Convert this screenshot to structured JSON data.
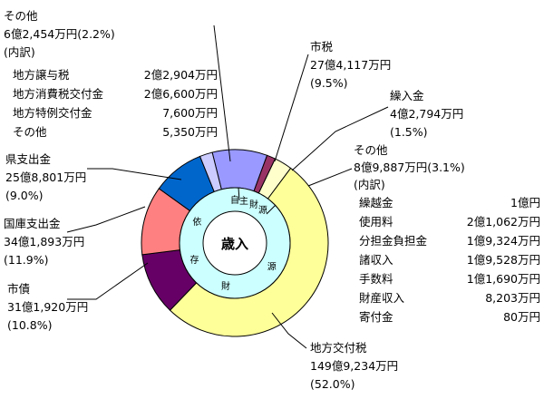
{
  "chart_data": {
    "type": "pie",
    "title": "歳入",
    "inner_ring": {
      "arcs": [
        {
          "label": "自主財源",
          "chars": [
            "自",
            "主",
            "財",
            "源"
          ]
        },
        {
          "label": "依存財源",
          "chars": [
            "依",
            "存",
            "財",
            "源"
          ]
        }
      ]
    },
    "slices": [
      {
        "name": "市税",
        "amount": "27億4,117万円",
        "pct": "(9.5%)",
        "value": 9.5,
        "color": "#9999ff"
      },
      {
        "name": "繰入金",
        "amount": "4億2,794万円",
        "pct": "(1.5%)",
        "value": 1.5,
        "color": "#993366"
      },
      {
        "name": "その他",
        "amount": "8億9,887万円",
        "pct": "(3.1%)",
        "value": 3.1,
        "color": "#ffffcc"
      },
      {
        "name": "地方交付税",
        "amount": "149億9,234万円",
        "pct": "(52.0%)",
        "value": 52.0,
        "color": "#ffff99"
      },
      {
        "name": "市債",
        "amount": "31億1,920万円",
        "pct": "(10.8%)",
        "value": 10.8,
        "color": "#660066"
      },
      {
        "name": "国庫支出金",
        "amount": "34億1,893万円",
        "pct": "(11.9%)",
        "value": 11.9,
        "color": "#ff8080"
      },
      {
        "name": "県支出金",
        "amount": "25億8,801万円",
        "pct": "(9.0%)",
        "value": 9.0,
        "color": "#0066cc"
      },
      {
        "name": "その他",
        "amount": "6億2,454万円",
        "pct": "(2.2%)",
        "value": 2.2,
        "color": "#ccccff"
      }
    ],
    "other_left": {
      "title": "その他",
      "line2": "6億2,454万円(2.2%)",
      "breakdown_label": "(内訳)",
      "items": [
        {
          "k": "地方譲与税",
          "v": "2億2,904万円"
        },
        {
          "k": "地方消費税交付金",
          "v": "2億6,600万円"
        },
        {
          "k": "地方特例交付金",
          "v": "7,600万円"
        },
        {
          "k": "その他",
          "v": "5,350万円"
        }
      ]
    },
    "other_right": {
      "title": "その他",
      "line2": "8億9,887万円(3.1%)",
      "breakdown_label": "(内訳)",
      "items": [
        {
          "k": "繰越金",
          "v": "1億円"
        },
        {
          "k": "使用料",
          "v": "2億1,062万円"
        },
        {
          "k": "分担金負担金",
          "v": "1億9,324万円"
        },
        {
          "k": "諸収入",
          "v": "1億9,528万円"
        },
        {
          "k": "手数料",
          "v": "1億1,690万円"
        },
        {
          "k": "財産収入",
          "v": "8,203万円"
        },
        {
          "k": "寄付金",
          "v": "80万円"
        }
      ]
    }
  }
}
